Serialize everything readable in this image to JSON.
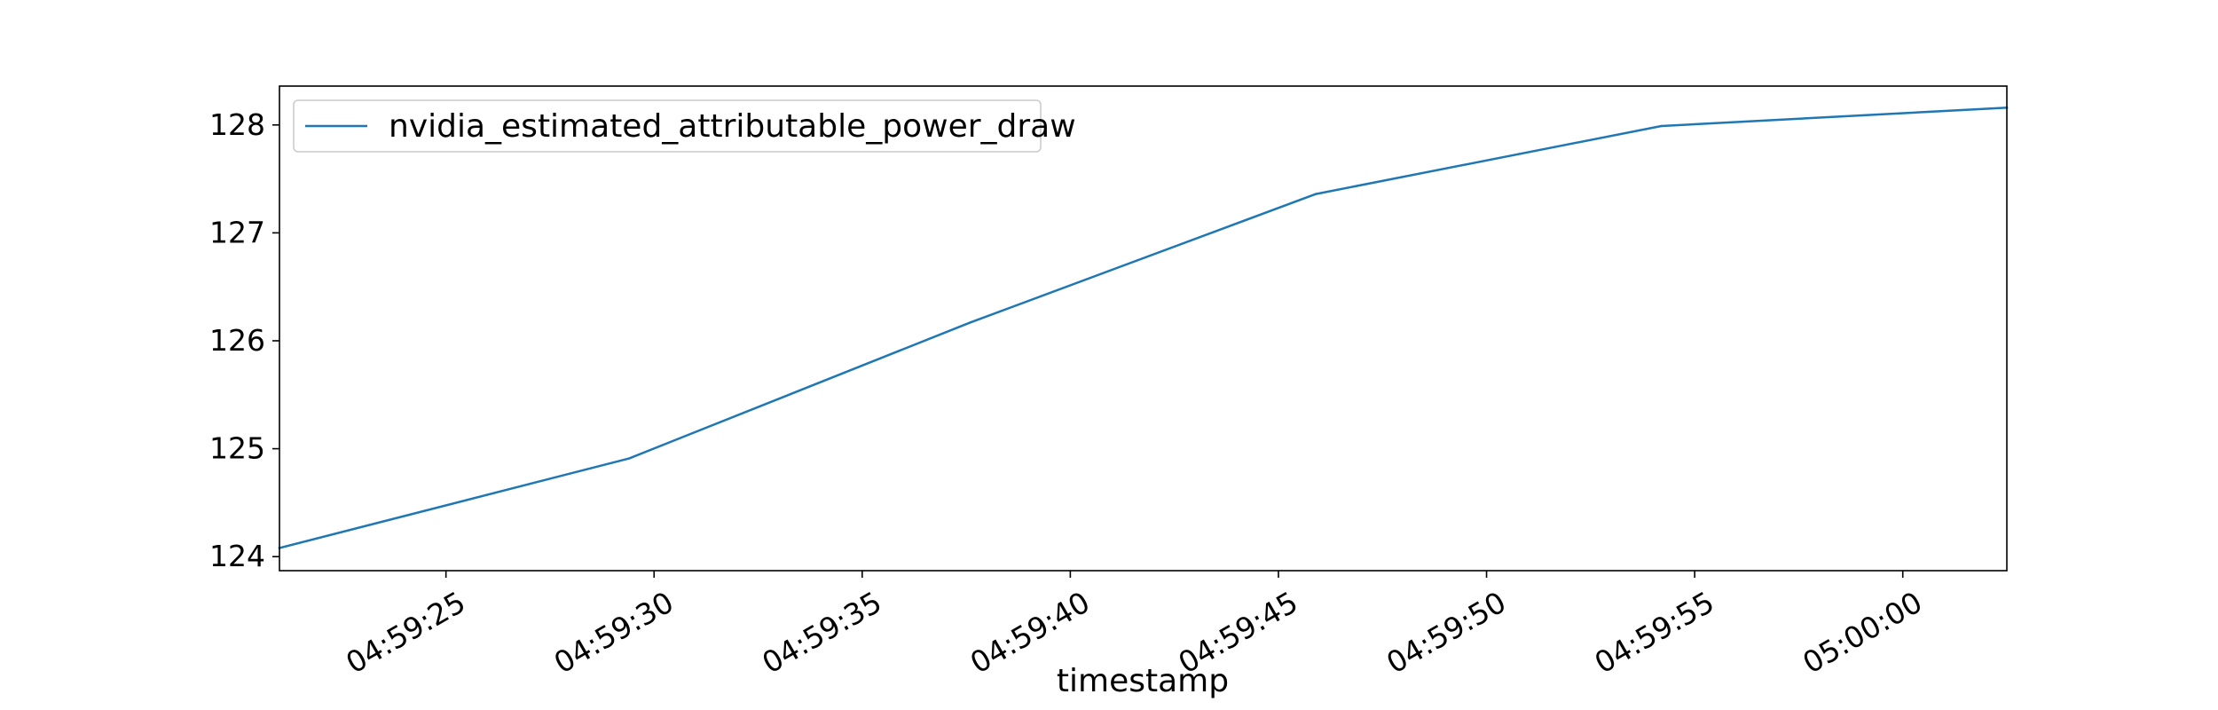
{
  "chart_data": {
    "type": "line",
    "title": "",
    "xlabel": "timestamp",
    "ylabel": "",
    "grid": false,
    "legend_position": "upper-left",
    "x_tick_labels": [
      "04:59:25",
      "04:59:30",
      "04:59:35",
      "04:59:40",
      "04:59:45",
      "04:59:50",
      "04:59:55",
      "05:00:00"
    ],
    "y_ticks": [
      124,
      125,
      126,
      127,
      128
    ],
    "y_tick_labels": [
      "124",
      "125",
      "126",
      "127",
      "128"
    ],
    "xlim": [
      "04:59:21",
      "05:00:02.5"
    ],
    "ylim": [
      123.87,
      128.36
    ],
    "series": [
      {
        "name": "nvidia_estimated_attributable_power_draw",
        "color": "#1f77b4",
        "x": [
          "04:59:21",
          "04:59:29.4",
          "04:59:37.6",
          "04:59:45.9",
          "04:59:54.2",
          "05:00:02.5"
        ],
        "y": [
          124.08,
          124.91,
          126.17,
          127.36,
          127.99,
          128.16
        ]
      }
    ]
  }
}
